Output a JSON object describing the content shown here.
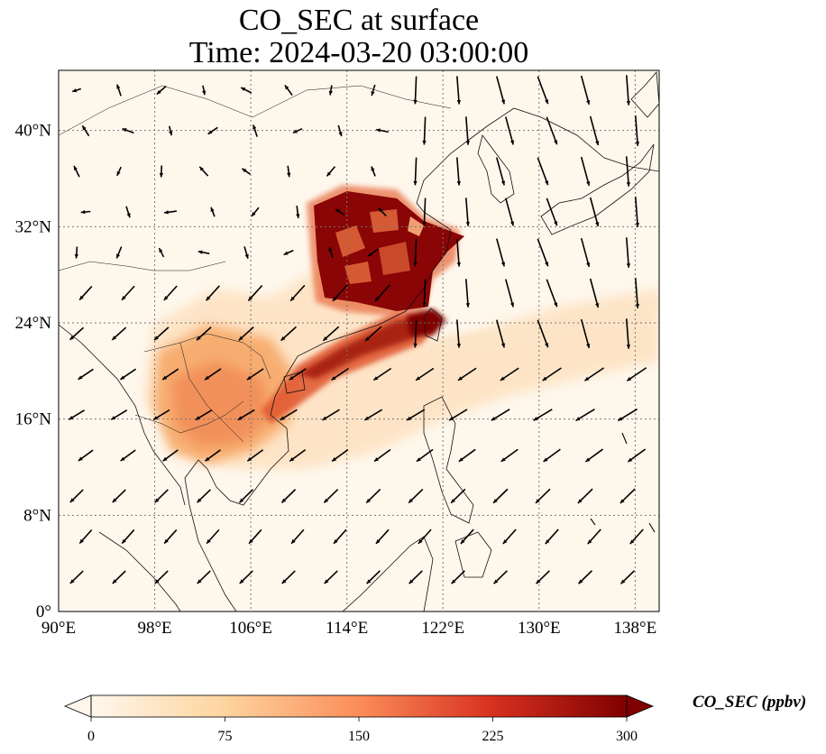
{
  "title": {
    "line1": "CO_SEC at surface",
    "line2": "Time: 2024-03-20 03:00:00"
  },
  "map": {
    "projection": "PlateCarree",
    "lon_range": [
      90,
      140
    ],
    "lat_range": [
      0,
      45
    ],
    "x_ticks": [
      "90°E",
      "98°E",
      "106°E",
      "114°E",
      "122°E",
      "130°E",
      "138°E"
    ],
    "y_ticks": [
      "0°",
      "8°N",
      "16°N",
      "24°N",
      "32°N",
      "40°N"
    ],
    "gridlines": "dotted",
    "coastlines": true,
    "borders": true,
    "wind_vectors": true
  },
  "colorbar": {
    "label": "CO_SEC (ppbv)",
    "ticks": [
      "0",
      "75",
      "150",
      "225",
      "300"
    ],
    "min": 0,
    "max": 300,
    "extend": "both",
    "colormap": "OrRd",
    "colors": [
      "#fff7ec",
      "#fdd49e",
      "#fc8d59",
      "#d7301f",
      "#7f0000"
    ]
  }
}
